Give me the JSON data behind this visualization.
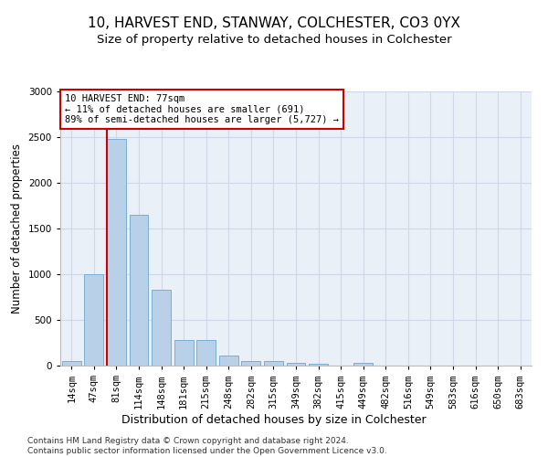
{
  "title1": "10, HARVEST END, STANWAY, COLCHESTER, CO3 0YX",
  "title2": "Size of property relative to detached houses in Colchester",
  "xlabel": "Distribution of detached houses by size in Colchester",
  "ylabel": "Number of detached properties",
  "categories": [
    "14sqm",
    "47sqm",
    "81sqm",
    "114sqm",
    "148sqm",
    "181sqm",
    "215sqm",
    "248sqm",
    "282sqm",
    "315sqm",
    "349sqm",
    "382sqm",
    "415sqm",
    "449sqm",
    "482sqm",
    "516sqm",
    "549sqm",
    "583sqm",
    "616sqm",
    "650sqm",
    "683sqm"
  ],
  "values": [
    55,
    1000,
    2480,
    1650,
    830,
    285,
    285,
    115,
    50,
    50,
    35,
    20,
    0,
    30,
    0,
    0,
    0,
    0,
    0,
    0,
    0
  ],
  "bar_color": "#b8d0e8",
  "bar_edgecolor": "#7aaed4",
  "vline_color": "#cc0000",
  "annotation_text": "10 HARVEST END: 77sqm\n← 11% of detached houses are smaller (691)\n89% of semi-detached houses are larger (5,727) →",
  "annotation_box_color": "#ffffff",
  "annotation_box_edgecolor": "#cc0000",
  "ylim": [
    0,
    3000
  ],
  "yticks": [
    0,
    500,
    1000,
    1500,
    2000,
    2500,
    3000
  ],
  "grid_color": "#d0d8e8",
  "background_color": "#eaf0f8",
  "footer": "Contains HM Land Registry data © Crown copyright and database right 2024.\nContains public sector information licensed under the Open Government Licence v3.0.",
  "title1_fontsize": 11,
  "title2_fontsize": 9.5,
  "xlabel_fontsize": 9,
  "ylabel_fontsize": 8.5,
  "tick_fontsize": 7.5,
  "annotation_fontsize": 7.5,
  "footer_fontsize": 6.5
}
